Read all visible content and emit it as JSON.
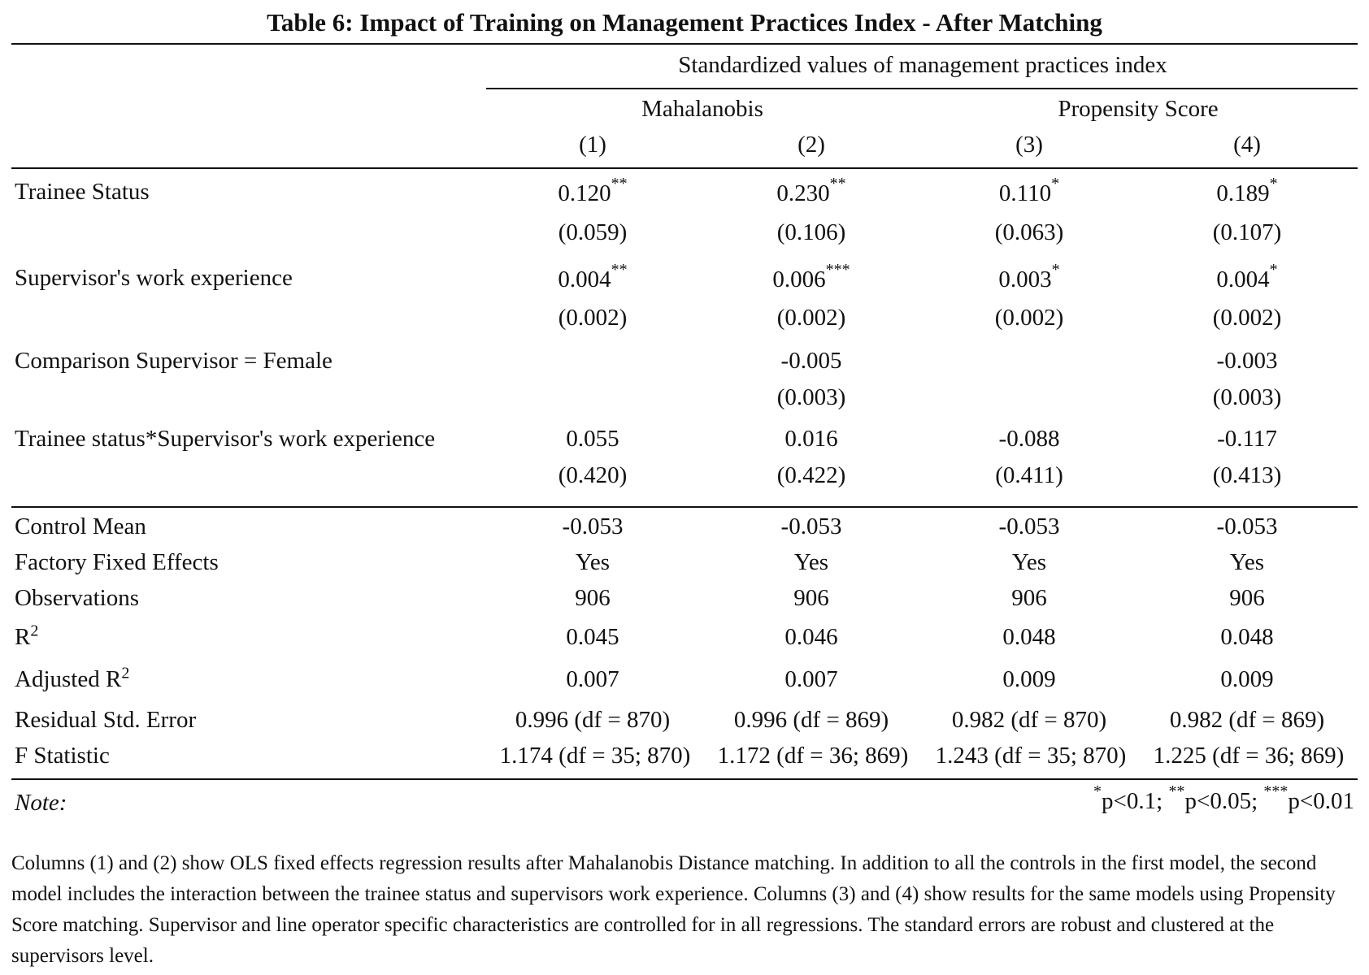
{
  "table": {
    "title": "Table 6: Impact of Training on Management Practices Index - After Matching",
    "dep_var_header": "Standardized values of management practices index",
    "group_headers": [
      "Mahalanobis",
      "Propensity Score"
    ],
    "column_numbers": [
      "(1)",
      "(2)",
      "(3)",
      "(4)"
    ],
    "coef_rows": [
      {
        "label": "Trainee Status",
        "coef": [
          "0.120",
          "0.230",
          "0.110",
          "0.189"
        ],
        "stars": [
          "**",
          "**",
          "*",
          "*"
        ],
        "se": [
          "(0.059)",
          "(0.106)",
          "(0.063)",
          "(0.107)"
        ]
      },
      {
        "label": "Supervisor's work experience",
        "coef": [
          "0.004",
          "0.006",
          "0.003",
          "0.004"
        ],
        "stars": [
          "**",
          "***",
          "*",
          "*"
        ],
        "se": [
          "(0.002)",
          "(0.002)",
          "(0.002)",
          "(0.002)"
        ]
      },
      {
        "label": "Comparison Supervisor = Female",
        "coef": [
          "",
          "-0.005",
          "",
          "-0.003"
        ],
        "stars": [
          "",
          "",
          "",
          ""
        ],
        "se": [
          "",
          "(0.003)",
          "",
          "(0.003)"
        ]
      },
      {
        "label": "Trainee status*Supervisor's work experience",
        "coef": [
          "0.055",
          "0.016",
          "-0.088",
          "-0.117"
        ],
        "stars": [
          "",
          "",
          "",
          ""
        ],
        "se": [
          "(0.420)",
          "(0.422)",
          "(0.411)",
          "(0.413)"
        ]
      }
    ],
    "stat_rows": [
      {
        "label": "Control Mean",
        "values": [
          "-0.053",
          "-0.053",
          "-0.053",
          "-0.053"
        ]
      },
      {
        "label": "Factory Fixed Effects",
        "values": [
          "Yes",
          "Yes",
          "Yes",
          "Yes"
        ]
      },
      {
        "label": "Observations",
        "values": [
          "906",
          "906",
          "906",
          "906"
        ]
      },
      {
        "label": "R",
        "label_sup": "2",
        "values": [
          "0.045",
          "0.046",
          "0.048",
          "0.048"
        ]
      },
      {
        "label": "Adjusted R",
        "label_sup": "2",
        "values": [
          "0.007",
          "0.007",
          "0.009",
          "0.009"
        ]
      },
      {
        "label": "Residual Std. Error",
        "values": [
          "0.996 (df = 870)",
          "0.996 (df = 869)",
          "0.982 (df = 870)",
          "0.982 (df = 869)"
        ]
      },
      {
        "label": "F Statistic",
        "values": [
          "1.174 (df = 35; 870)",
          "1.172 (df = 36; 869)",
          "1.243 (df = 35; 870)",
          "1.225 (df = 36; 869)"
        ]
      }
    ],
    "note_label": "Note:",
    "significance": [
      {
        "stars": "*",
        "text": "p<0.1;"
      },
      {
        "stars": "**",
        "text": "p<0.05;"
      },
      {
        "stars": "***",
        "text": "p<0.01"
      }
    ]
  },
  "footnote": "Columns (1) and (2) show OLS fixed effects regression results after Mahalanobis Distance matching. In addition to all the controls in the first model, the second model includes the interaction between the trainee status and supervisors work experience. Columns (3) and (4) show results for the same models using Propensity Score matching. Supervisor and line operator specific characteristics are controlled for in all regressions. The standard errors are robust and clustered at the supervisors level."
}
